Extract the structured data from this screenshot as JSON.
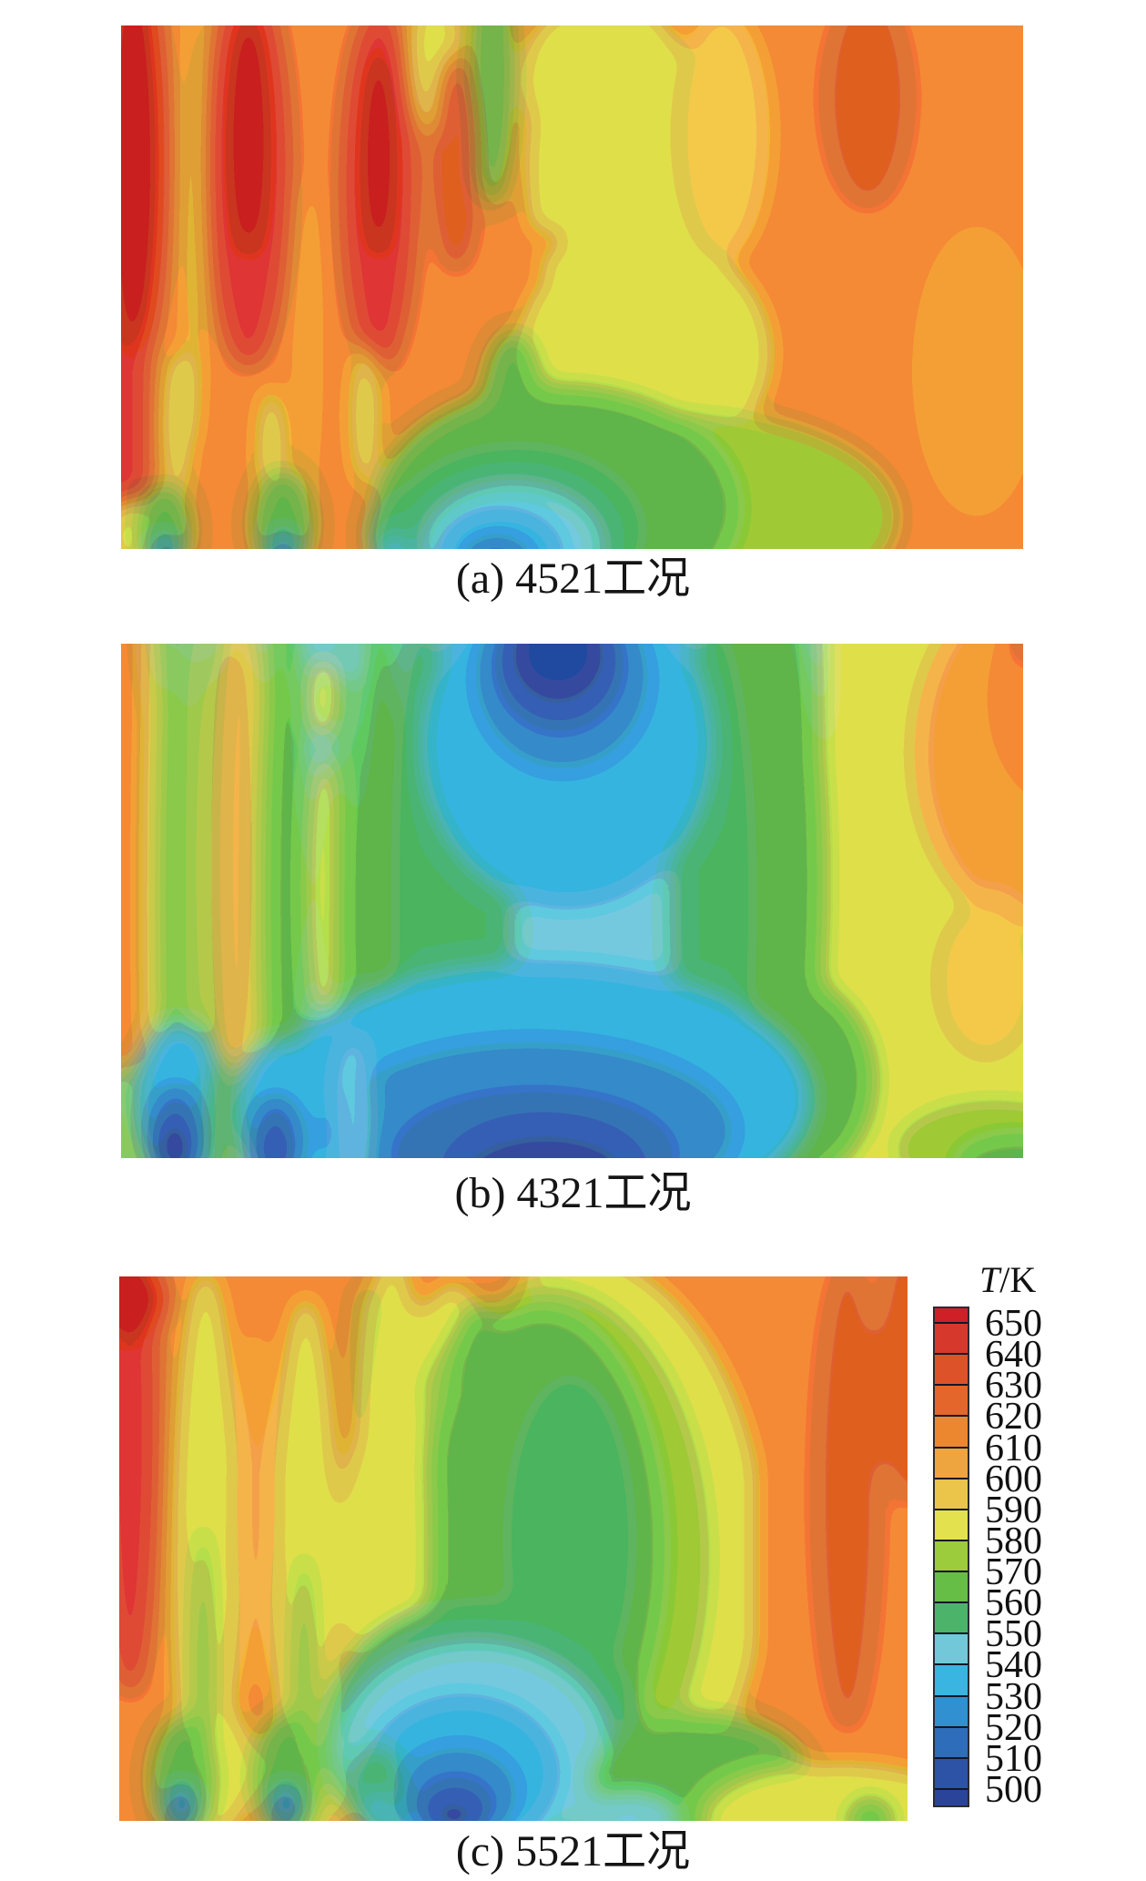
{
  "figure": {
    "panels": [
      {
        "id": "a",
        "caption": "(a) 4521工况"
      },
      {
        "id": "b",
        "caption": "(b) 4321工况"
      },
      {
        "id": "c",
        "caption": "(c) 5521工况"
      }
    ],
    "colorbar": {
      "title_italic": "T",
      "title_rest": "/K",
      "ticks": [
        "650",
        "640",
        "630",
        "620",
        "610",
        "600",
        "590",
        "580",
        "570",
        "560",
        "550",
        "540",
        "530",
        "520",
        "510",
        "500"
      ],
      "band_colors_top_to_bottom": [
        "#ce2026",
        "#d6392b",
        "#de5229",
        "#e4662a",
        "#ed872f",
        "#eea43f",
        "#eac54a",
        "#e4e14f",
        "#9ccb3c",
        "#66be47",
        "#4cb46a",
        "#72c8d8",
        "#3ab4e0",
        "#3090d0",
        "#2e6db9",
        "#2c53a6",
        "#2a4499"
      ],
      "tick_line_color": "#101828"
    }
  },
  "chart_data": [
    {
      "type": "heatmap",
      "panel": "(a)",
      "condition_label": "4521工况",
      "caption": "(a) 4521工况",
      "variable": "T",
      "units": "K",
      "scale": {
        "min": 500,
        "max": 650,
        "step": 10
      },
      "legend_title": "T/K",
      "summary": "Hot zone 620–650 K as red/orange vertical plumes on the left quarter and orange across the top and right half; yellow band ~590–600 K through the middle; narrow green wedge ~570 K descending from top center; cool pocket 500–560 K (green/cyan/blue) at bottom center with dark-blue minima near 500 K at the bottom edge."
    },
    {
      "type": "heatmap",
      "panel": "(b)",
      "condition_label": "4321工况",
      "caption": "(b) 4321工况",
      "variable": "T",
      "units": "K",
      "scale": {
        "min": 500,
        "max": 650,
        "step": 10
      },
      "legend_title": "T/K",
      "summary": "Coolest case: broad cyan/teal region 540–560 K through the center, dark-blue minimum near 500 K at top center and a wide dark-blue band along the bottom; alternating yellow/orange/green striations 570–620 K on the left edge; green→yellow→orange gradient toward the upper-right (up to ~630 K)."
    },
    {
      "type": "heatmap",
      "panel": "(c)",
      "condition_label": "5521工况",
      "caption": "(c) 5521工况",
      "variable": "T",
      "units": "K",
      "scale": {
        "min": 500,
        "max": 650,
        "step": 10
      },
      "legend_title": "T/K",
      "summary": "Red streak ~650 K at top-left corner; alternating yellow/orange plumes with thin green spikes on the left; broad green region 560–580 K in the center; blue minima 500–530 K at bottom center; orange 610–630 K over the right side with yellow-green at the bottom-right corner."
    }
  ]
}
